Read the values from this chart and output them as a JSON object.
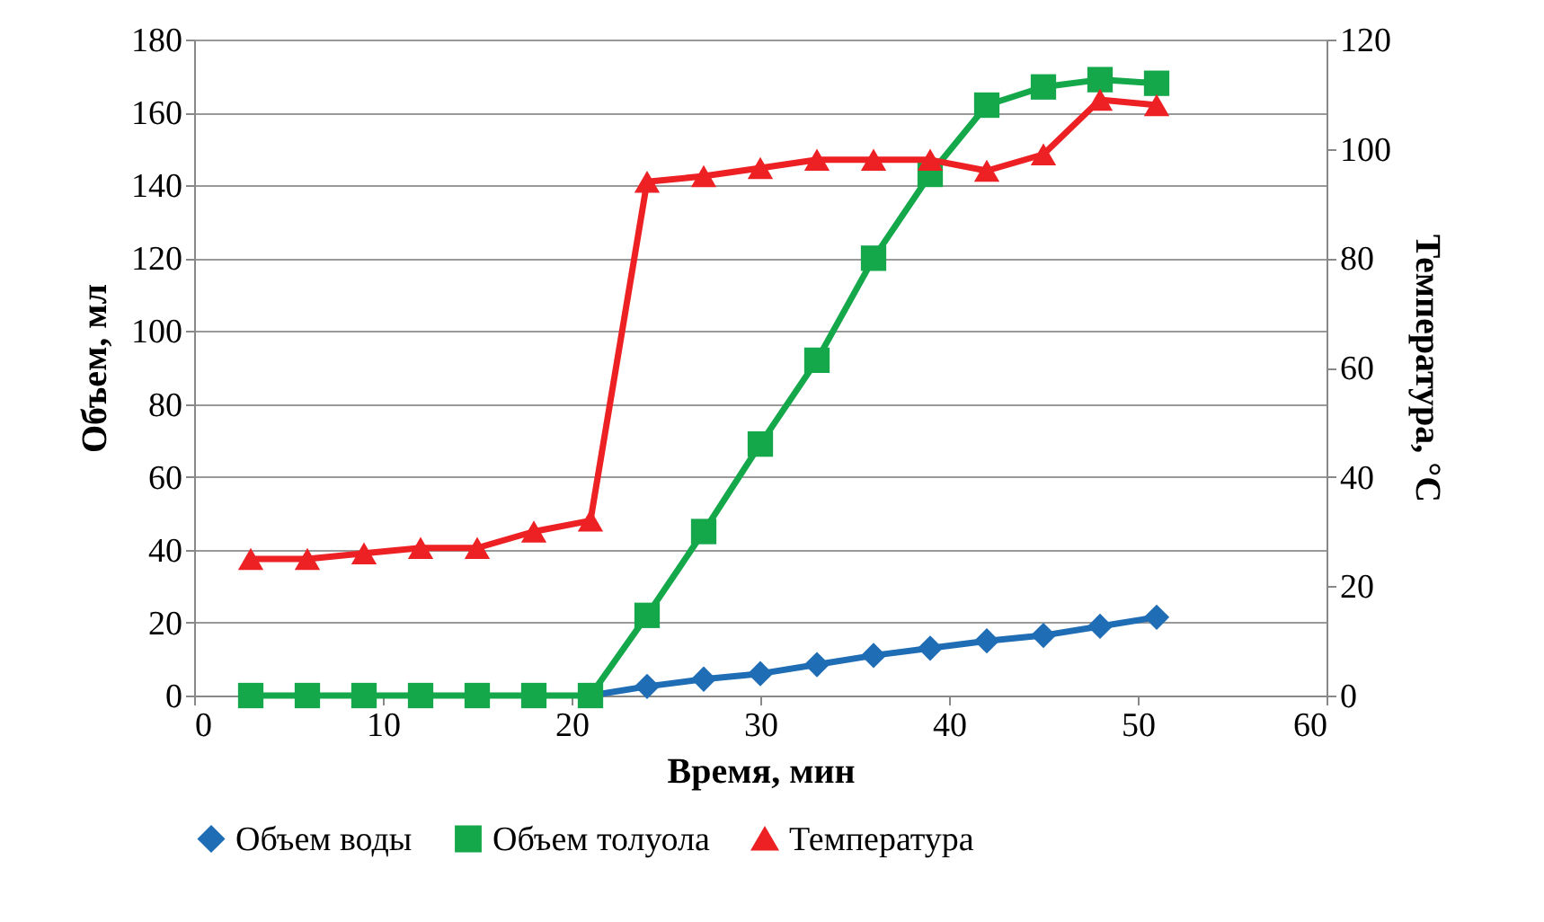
{
  "chart_data": {
    "type": "line",
    "xlabel": "Время, мин",
    "ylabel": "Объем, мл",
    "y2label": "Температура, °С",
    "x": [
      3,
      6,
      9,
      12,
      15,
      18,
      21,
      24,
      27,
      30,
      33,
      36,
      39,
      42,
      45,
      48,
      51
    ],
    "series": [
      {
        "name": "Объем воды",
        "color": "#1f6db5",
        "marker": "diamond",
        "values": [
          null,
          null,
          null,
          null,
          null,
          null,
          0,
          2.5,
          4.5,
          6,
          8.5,
          11,
          13,
          15,
          16.5,
          19,
          21.5
        ]
      },
      {
        "name": "Объем толуола",
        "color": "#14a84b",
        "marker": "square",
        "values": [
          0,
          0,
          0,
          0,
          0,
          0,
          0,
          22,
          45,
          69,
          92,
          120,
          143,
          162,
          167,
          169,
          168
        ]
      },
      {
        "name": "Температура",
        "color": "#ed2124",
        "marker": "triangle",
        "axis": "y2",
        "values": [
          25,
          25,
          26,
          27,
          27,
          30,
          32,
          94,
          95,
          96.5,
          98,
          98,
          98,
          96,
          99,
          109,
          108
        ]
      }
    ],
    "xlim": [
      0,
      60
    ],
    "xticks": [
      0,
      10,
      20,
      30,
      40,
      50,
      60
    ],
    "ylim": [
      0,
      180
    ],
    "yticks": [
      0,
      20,
      40,
      60,
      80,
      100,
      120,
      140,
      160,
      180
    ],
    "y2lim": [
      0,
      120
    ],
    "y2ticks": [
      0,
      20,
      40,
      60,
      80,
      100,
      120
    ],
    "grid": "y",
    "legend": "bottom",
    "line_style": "solid"
  }
}
